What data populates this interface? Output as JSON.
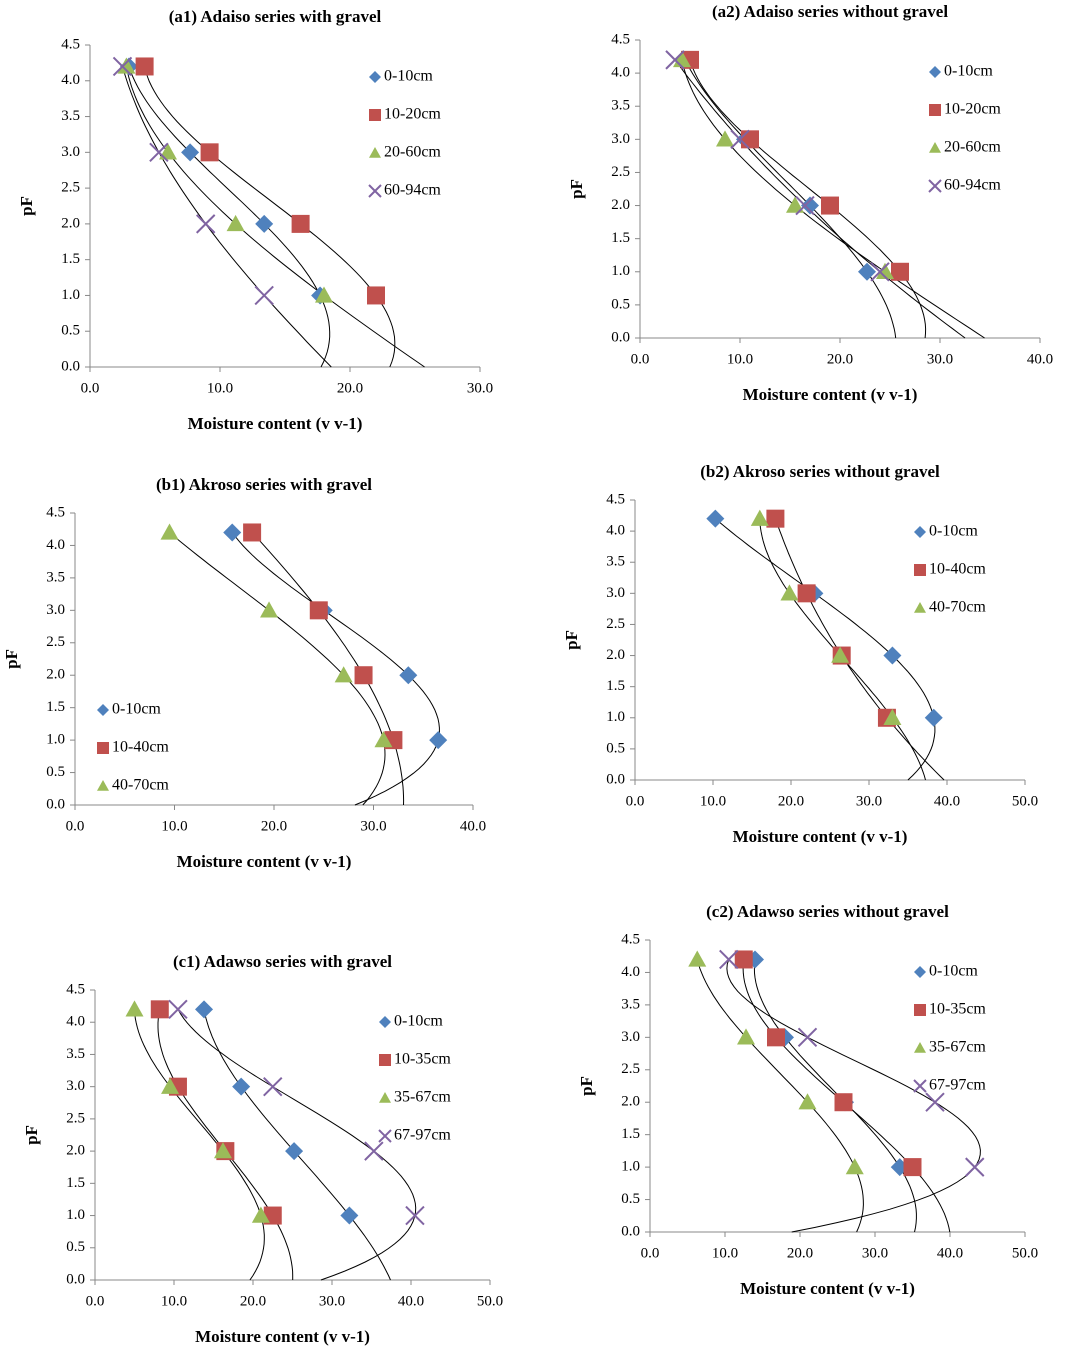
{
  "chart_data": [
    {
      "type": "scatter",
      "title": "(a1) Adaiso series with gravel",
      "x_label": "Moisture content (v v-1)",
      "y_label": "pF",
      "xlim": [
        0,
        30
      ],
      "xticks": [
        {
          "value": 0,
          "label": "0.0"
        },
        {
          "value": 10,
          "label": "10.0"
        },
        {
          "value": 20,
          "label": "20.0"
        },
        {
          "value": 30,
          "label": "30.0"
        }
      ],
      "ylim": [
        0,
        4.5
      ],
      "yticks": [
        {
          "value": 0,
          "label": "0.0"
        },
        0.5,
        {
          "value": 1,
          "label": "1.0"
        },
        1.5,
        {
          "value": 2,
          "label": "2.0"
        },
        2.5,
        {
          "value": 3,
          "label": "3.0"
        },
        3.5,
        {
          "value": 4,
          "label": "4.0"
        },
        4.5
      ],
      "legend": "upper right",
      "series": [
        {
          "name": "0-10cm",
          "color": "#4f81bd",
          "marker": "diamond",
          "x": [
            3.0,
            7.7,
            13.4,
            17.7
          ],
          "values": [
            4.2,
            3.0,
            2.0,
            1.0
          ]
        },
        {
          "name": "10-20cm",
          "color": "#c0504d",
          "marker": "square",
          "x": [
            4.2,
            9.2,
            16.2,
            22.0
          ],
          "values": [
            4.2,
            3.0,
            2.0,
            1.0
          ]
        },
        {
          "name": "20-60cm",
          "color": "#9bbb59",
          "marker": "triangle",
          "x": [
            2.8,
            6.0,
            11.2,
            18.0
          ],
          "values": [
            4.2,
            3.0,
            2.0,
            1.0
          ]
        },
        {
          "name": "60-94cm",
          "color": "#8064a2",
          "marker": "x",
          "x": [
            2.5,
            5.3,
            8.9,
            13.4
          ],
          "values": [
            4.2,
            3.0,
            2.0,
            1.0
          ]
        }
      ]
    },
    {
      "type": "scatter",
      "title": "(a2) Adaiso series without gravel",
      "x_label": "Moisture content (v v-1)",
      "y_label": "pF",
      "xlim": [
        0,
        40
      ],
      "xticks": [
        {
          "value": 0,
          "label": "0.0"
        },
        {
          "value": 10,
          "label": "10.0"
        },
        {
          "value": 20,
          "label": "20.0"
        },
        {
          "value": 30,
          "label": "30.0"
        },
        {
          "value": 40,
          "label": "40.0"
        }
      ],
      "ylim": [
        0,
        4.5
      ],
      "yticks": [
        {
          "value": 0,
          "label": "0.0"
        },
        0.5,
        {
          "value": 1,
          "label": "1.0"
        },
        1.5,
        {
          "value": 2,
          "label": "2.0"
        },
        2.5,
        {
          "value": 3,
          "label": "3.0"
        },
        3.5,
        {
          "value": 4,
          "label": "4.0"
        },
        4.5
      ],
      "legend": "upper right",
      "series": [
        {
          "name": "0-10cm",
          "color": "#4f81bd",
          "marker": "diamond",
          "x": [
            4.5,
            10.5,
            17.0,
            22.7
          ],
          "values": [
            4.2,
            3.0,
            2.0,
            1.0
          ]
        },
        {
          "name": "10-20cm",
          "color": "#c0504d",
          "marker": "square",
          "x": [
            5.0,
            11.0,
            19.0,
            26.0
          ],
          "values": [
            4.2,
            3.0,
            2.0,
            1.0
          ]
        },
        {
          "name": "20-60cm",
          "color": "#9bbb59",
          "marker": "triangle",
          "x": [
            4.2,
            8.5,
            15.5,
            24.5
          ],
          "values": [
            4.2,
            3.0,
            2.0,
            1.0
          ]
        },
        {
          "name": "60-94cm",
          "color": "#8064a2",
          "marker": "x",
          "x": [
            3.5,
            10.0,
            16.5,
            24.0
          ],
          "values": [
            4.2,
            3.0,
            2.0,
            1.0
          ]
        }
      ]
    },
    {
      "type": "scatter",
      "title": "(b1) Akroso series  with gravel",
      "x_label": "Moisture content (v v-1)",
      "y_label": "pF",
      "xlim": [
        0,
        40
      ],
      "xticks": [
        {
          "value": 0,
          "label": "0.0"
        },
        {
          "value": 10,
          "label": "10.0"
        },
        {
          "value": 20,
          "label": "20.0"
        },
        {
          "value": 30,
          "label": "30.0"
        },
        {
          "value": 40,
          "label": "40.0"
        }
      ],
      "ylim": [
        0,
        4.5
      ],
      "yticks": [
        {
          "value": 0,
          "label": "0.0"
        },
        0.5,
        {
          "value": 1,
          "label": "1.0"
        },
        1.5,
        {
          "value": 2,
          "label": "2.0"
        },
        2.5,
        {
          "value": 3,
          "label": "3.0"
        },
        3.5,
        {
          "value": 4,
          "label": "4.0"
        },
        4.5
      ],
      "legend": "lower left",
      "series": [
        {
          "name": "0-10cm",
          "color": "#4f81bd",
          "marker": "diamond",
          "x": [
            15.8,
            25.0,
            33.5,
            36.5
          ],
          "values": [
            4.2,
            3.0,
            2.0,
            1.0
          ]
        },
        {
          "name": "10-40cm",
          "color": "#c0504d",
          "marker": "square",
          "x": [
            17.8,
            24.5,
            29.0,
            32.0
          ],
          "values": [
            4.2,
            3.0,
            2.0,
            1.0
          ]
        },
        {
          "name": "40-70cm",
          "color": "#9bbb59",
          "marker": "triangle",
          "x": [
            9.5,
            19.5,
            27.0,
            31.0
          ],
          "values": [
            4.2,
            3.0,
            2.0,
            1.0
          ]
        }
      ]
    },
    {
      "type": "scatter",
      "title": "(b2) Akroso series  without gravel",
      "x_label": "Moisture content (v v-1)",
      "y_label": "pF",
      "xlim": [
        0,
        50
      ],
      "xticks": [
        {
          "value": 0,
          "label": "0.0"
        },
        {
          "value": 10,
          "label": "10.0"
        },
        {
          "value": 20,
          "label": "20.0"
        },
        {
          "value": 30,
          "label": "30.0"
        },
        {
          "value": 40,
          "label": "40.0"
        },
        {
          "value": 50,
          "label": "50.0"
        }
      ],
      "ylim": [
        0,
        4.5
      ],
      "yticks": [
        {
          "value": 0,
          "label": "0.0"
        },
        0.5,
        {
          "value": 1,
          "label": "1.0"
        },
        1.5,
        {
          "value": 2,
          "label": "2.0"
        },
        2.5,
        {
          "value": 3,
          "label": "3.0"
        },
        3.5,
        {
          "value": 4,
          "label": "4.0"
        },
        4.5
      ],
      "legend": "upper right",
      "series": [
        {
          "name": "0-10cm",
          "color": "#4f81bd",
          "marker": "diamond",
          "x": [
            10.3,
            23.0,
            33.0,
            38.3
          ],
          "values": [
            4.2,
            3.0,
            2.0,
            1.0
          ]
        },
        {
          "name": "10-40cm",
          "color": "#c0504d",
          "marker": "square",
          "x": [
            18.0,
            22.0,
            26.5,
            32.3
          ],
          "values": [
            4.2,
            3.0,
            2.0,
            1.0
          ]
        },
        {
          "name": "40-70cm",
          "color": "#9bbb59",
          "marker": "triangle",
          "x": [
            16.0,
            19.8,
            26.3,
            33.0
          ],
          "values": [
            4.2,
            3.0,
            2.0,
            1.0
          ]
        }
      ]
    },
    {
      "type": "scatter",
      "title": "(c1) Adawso series  with gravel",
      "x_label": "Moisture content (v v-1)",
      "y_label": "pF",
      "xlim": [
        0,
        50
      ],
      "xticks": [
        {
          "value": 0,
          "label": "0.0"
        },
        {
          "value": 10,
          "label": "10.0"
        },
        {
          "value": 20,
          "label": "20.0"
        },
        {
          "value": 30,
          "label": "30.0"
        },
        {
          "value": 40,
          "label": "40.0"
        },
        {
          "value": 50,
          "label": "50.0"
        }
      ],
      "ylim": [
        0,
        4.5
      ],
      "yticks": [
        {
          "value": 0,
          "label": "0.0"
        },
        0.5,
        {
          "value": 1,
          "label": "1.0"
        },
        1.5,
        {
          "value": 2,
          "label": "2.0"
        },
        2.5,
        {
          "value": 3,
          "label": "3.0"
        },
        3.5,
        {
          "value": 4,
          "label": "4.0"
        },
        4.5
      ],
      "legend": "upper right",
      "series": [
        {
          "name": "0-10cm",
          "color": "#4f81bd",
          "marker": "diamond",
          "x": [
            13.8,
            18.5,
            25.2,
            32.2
          ],
          "values": [
            4.2,
            3.0,
            2.0,
            1.0
          ]
        },
        {
          "name": "10-35cm",
          "color": "#c0504d",
          "marker": "square",
          "x": [
            8.2,
            10.5,
            16.5,
            22.5
          ],
          "values": [
            4.2,
            3.0,
            2.0,
            1.0
          ]
        },
        {
          "name": "35-67cm",
          "color": "#9bbb59",
          "marker": "triangle",
          "x": [
            5.0,
            9.5,
            16.2,
            21.0
          ],
          "values": [
            4.2,
            3.0,
            2.0,
            1.0
          ]
        },
        {
          "name": "67-97cm",
          "color": "#8064a2",
          "marker": "x",
          "x": [
            10.5,
            22.5,
            35.3,
            40.5
          ],
          "values": [
            4.2,
            3.0,
            2.0,
            1.0
          ]
        }
      ]
    },
    {
      "type": "scatter",
      "title": "(c2) Adawso series  without gravel",
      "x_label": "Moisture content (v v-1)",
      "y_label": "pF",
      "xlim": [
        0,
        50
      ],
      "xticks": [
        {
          "value": 0,
          "label": "0.0"
        },
        {
          "value": 10,
          "label": "10.0"
        },
        {
          "value": 20,
          "label": "20.0"
        },
        {
          "value": 30,
          "label": "30.0"
        },
        {
          "value": 40,
          "label": "40.0"
        },
        {
          "value": 50,
          "label": "50.0"
        }
      ],
      "ylim": [
        0,
        4.5
      ],
      "yticks": [
        {
          "value": 0,
          "label": "0.0"
        },
        0.5,
        {
          "value": 1,
          "label": "1.0"
        },
        1.5,
        {
          "value": 2,
          "label": "2.0"
        },
        2.5,
        {
          "value": 3,
          "label": "3.0"
        },
        3.5,
        {
          "value": 4,
          "label": "4.0"
        },
        4.5
      ],
      "legend": "upper right",
      "series": [
        {
          "name": "0-10cm",
          "color": "#4f81bd",
          "marker": "diamond",
          "x": [
            14.0,
            18.0,
            26.0,
            33.3
          ],
          "values": [
            4.2,
            3.0,
            2.0,
            1.0
          ]
        },
        {
          "name": "10-35cm",
          "color": "#c0504d",
          "marker": "square",
          "x": [
            12.5,
            16.8,
            25.8,
            35.0
          ],
          "values": [
            4.2,
            3.0,
            2.0,
            1.0
          ]
        },
        {
          "name": "35-67cm",
          "color": "#9bbb59",
          "marker": "triangle",
          "x": [
            6.3,
            12.8,
            21.0,
            27.3
          ],
          "values": [
            4.2,
            3.0,
            2.0,
            1.0
          ]
        },
        {
          "name": "67-97cm",
          "color": "#8064a2",
          "marker": "x",
          "x": [
            10.5,
            21.0,
            38.0,
            43.3
          ],
          "values": [
            4.2,
            3.0,
            2.0,
            1.0
          ]
        }
      ]
    }
  ]
}
